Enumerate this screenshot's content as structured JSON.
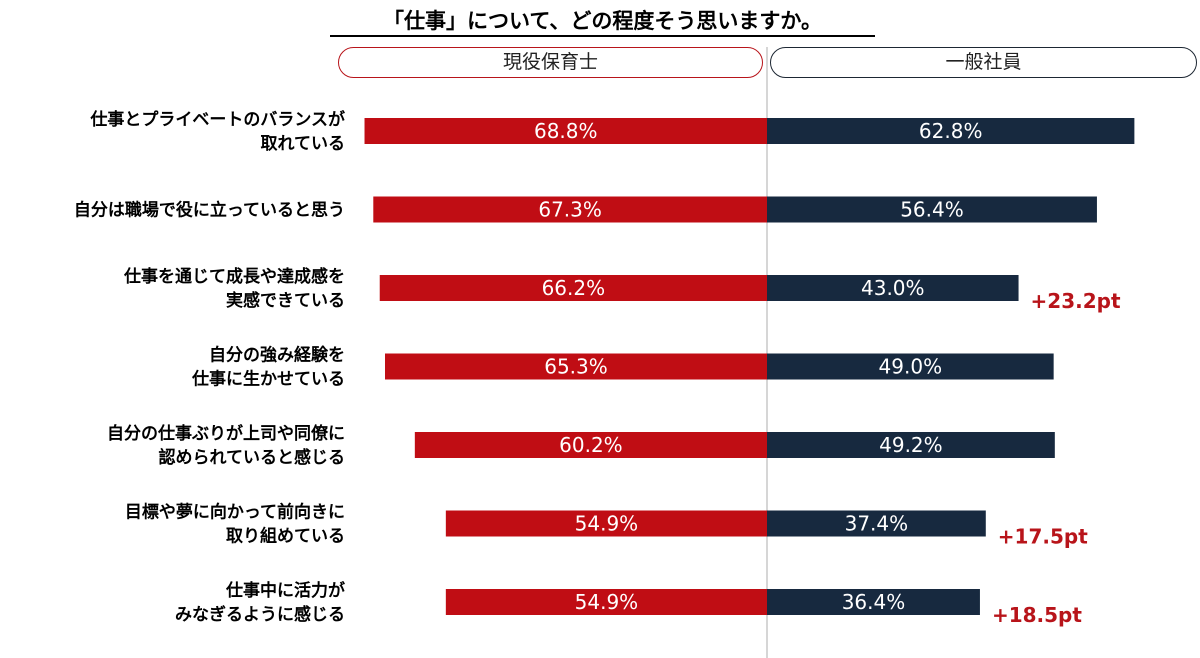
{
  "chart_data": {
    "type": "bar",
    "orientation": "horizontal-diverging",
    "title": "「仕事」について、どの程度そう思いますか。",
    "unit": "%",
    "xlim": [
      0,
      100
    ],
    "colors": {
      "保育士": "#c00d14",
      "一般社員": "#17293f",
      "difference": "#b8141a"
    },
    "series": [
      {
        "name": "現役保育士",
        "values": [
          68.8,
          67.3,
          66.2,
          65.3,
          60.2,
          54.9,
          54.9
        ],
        "labels": [
          "68.8%",
          "67.3%",
          "66.2%",
          "65.3%",
          "60.2%",
          "54.9%",
          "54.9%"
        ]
      },
      {
        "name": "一般社員",
        "values": [
          62.8,
          56.4,
          43.0,
          49.0,
          49.2,
          37.4,
          36.4
        ],
        "labels": [
          "62.8%",
          "56.4%",
          "43.0%",
          "49.0%",
          "49.2%",
          "37.4%",
          "36.4%"
        ]
      }
    ],
    "categories": [
      {
        "lines": [
          "仕事とプライベートのバランスが",
          "取れている"
        ]
      },
      {
        "lines": [
          "自分は職場で役に立っていると思う"
        ]
      },
      {
        "lines": [
          "仕事を通じて成長や達成感を",
          "実感できている"
        ]
      },
      {
        "lines": [
          "自分の強み経験を",
          "仕事に生かせている"
        ]
      },
      {
        "lines": [
          "自分の仕事ぶりが上司や同僚に",
          "認められていると感じる"
        ]
      },
      {
        "lines": [
          "目標や夢に向かって前向きに",
          "取り組めている"
        ]
      },
      {
        "lines": [
          "仕事中に活力が",
          "みなぎるように感じる"
        ]
      }
    ],
    "differences": [
      "",
      "",
      "+23.2pt",
      "",
      "",
      "+17.5pt",
      "+18.5pt"
    ]
  }
}
